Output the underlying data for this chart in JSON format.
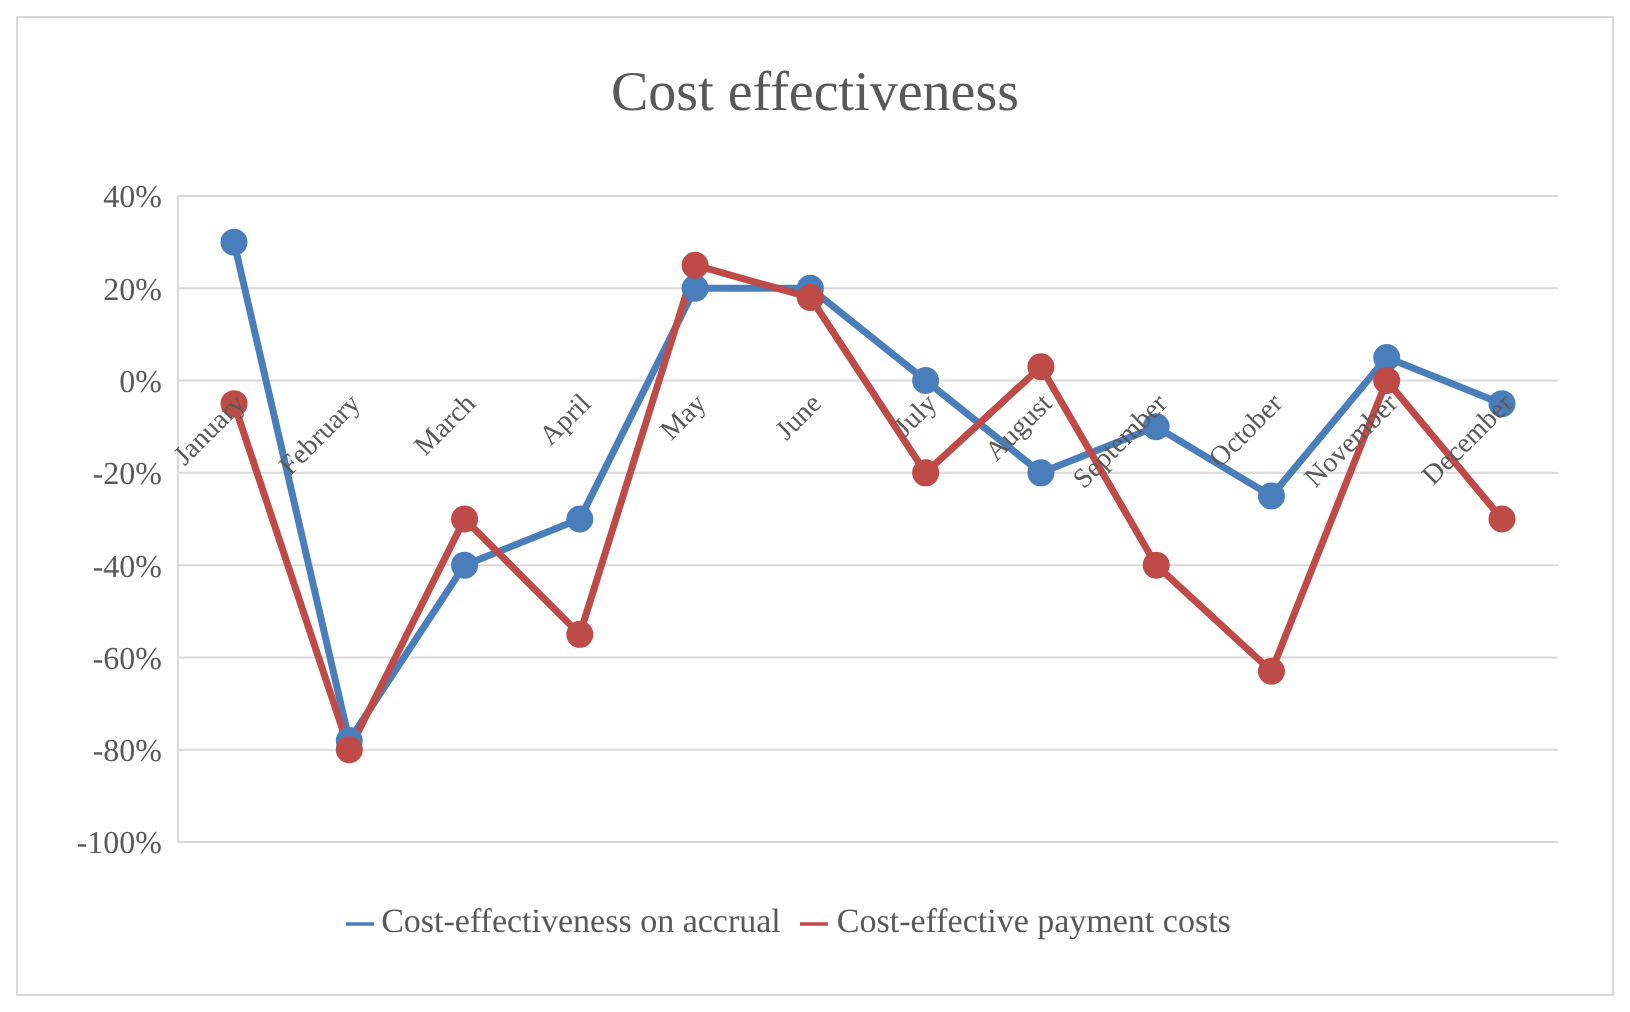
{
  "chart_data": {
    "type": "line",
    "title": "Cost effectiveness",
    "categories": [
      "January",
      "February",
      "March",
      "April",
      "May",
      "June",
      "July",
      "August",
      "September",
      "October",
      "November",
      "December"
    ],
    "series": [
      {
        "name": "Cost-effectiveness on accrual",
        "color": "#4a7ebb",
        "values": [
          30,
          -78,
          -40,
          -30,
          20,
          20,
          0,
          -20,
          -10,
          -25,
          5,
          -5
        ]
      },
      {
        "name": "Cost-effective payment costs",
        "color": "#be4b48",
        "values": [
          -5,
          -80,
          -30,
          -55,
          25,
          18,
          -20,
          3,
          -40,
          -63,
          0,
          -30
        ]
      }
    ],
    "ylim": [
      -100,
      40
    ],
    "yticks": [
      {
        "value": -100,
        "label": "-100%"
      },
      {
        "value": -80,
        "label": "-80%"
      },
      {
        "value": -60,
        "label": "-60%"
      },
      {
        "value": -40,
        "label": "-40%"
      },
      {
        "value": -20,
        "label": "-20%"
      },
      {
        "value": 0,
        "label": "0%"
      },
      {
        "value": 20,
        "label": "20%"
      },
      {
        "value": 40,
        "label": "40%"
      }
    ],
    "grid": "y",
    "legend": "bottom",
    "marker": "circle",
    "line_style": "solid"
  }
}
